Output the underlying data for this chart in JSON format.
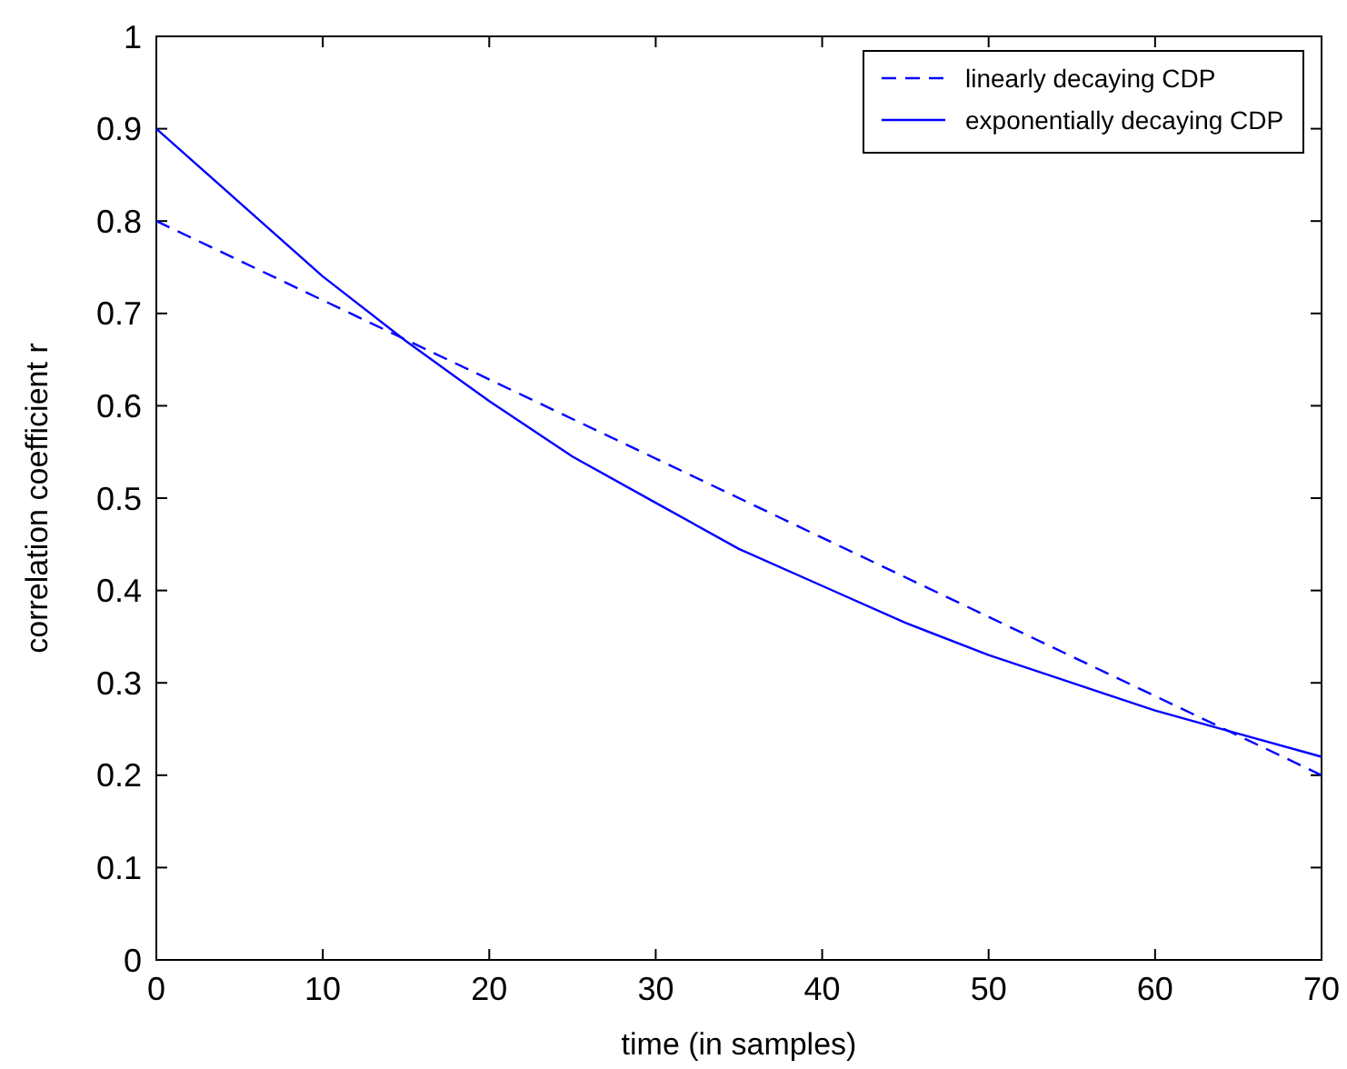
{
  "chart_data": {
    "type": "line",
    "xlabel": "time (in samples)",
    "ylabel": "correlation coefficient r",
    "xlim": [
      0,
      70
    ],
    "ylim": [
      0,
      1
    ],
    "xticks": [
      0,
      10,
      20,
      30,
      40,
      50,
      60,
      70
    ],
    "yticks": [
      0,
      0.1,
      0.2,
      0.3,
      0.4,
      0.5,
      0.6,
      0.7,
      0.8,
      0.9,
      1
    ],
    "grid": false,
    "legend": "top right",
    "series": [
      {
        "name": "linearly decaying CDP",
        "color": "#0000ff",
        "line_style": "dashed",
        "x": [
          0,
          70
        ],
        "values": [
          0.8,
          0.2
        ]
      },
      {
        "name": "exponentially decaying CDP",
        "color": "#0000ff",
        "line_style": "solid",
        "x": [
          0,
          5,
          10,
          15,
          20,
          25,
          30,
          35,
          40,
          45,
          50,
          55,
          60,
          65,
          70
        ],
        "values": [
          0.9,
          0.82,
          0.74,
          0.67,
          0.605,
          0.545,
          0.495,
          0.445,
          0.405,
          0.365,
          0.33,
          0.3,
          0.27,
          0.245,
          0.22
        ]
      }
    ]
  }
}
